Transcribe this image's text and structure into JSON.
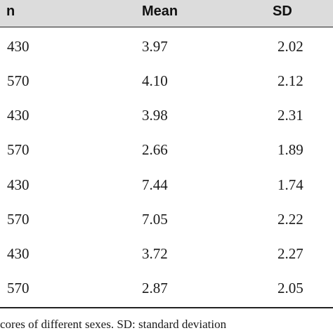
{
  "table": {
    "headers": [
      "n",
      "Mean",
      "SD"
    ],
    "rows": [
      [
        "430",
        "3.97",
        "2.02"
      ],
      [
        "570",
        "4.10",
        "2.12"
      ],
      [
        "430",
        "3.98",
        "2.31"
      ],
      [
        "570",
        "2.66",
        "1.89"
      ],
      [
        "430",
        "7.44",
        "1.74"
      ],
      [
        "570",
        "7.05",
        "2.22"
      ],
      [
        "430",
        "3.72",
        "2.27"
      ],
      [
        "570",
        "2.87",
        "2.05"
      ]
    ]
  },
  "footnote": "cores of different sexes. SD: standard deviation"
}
